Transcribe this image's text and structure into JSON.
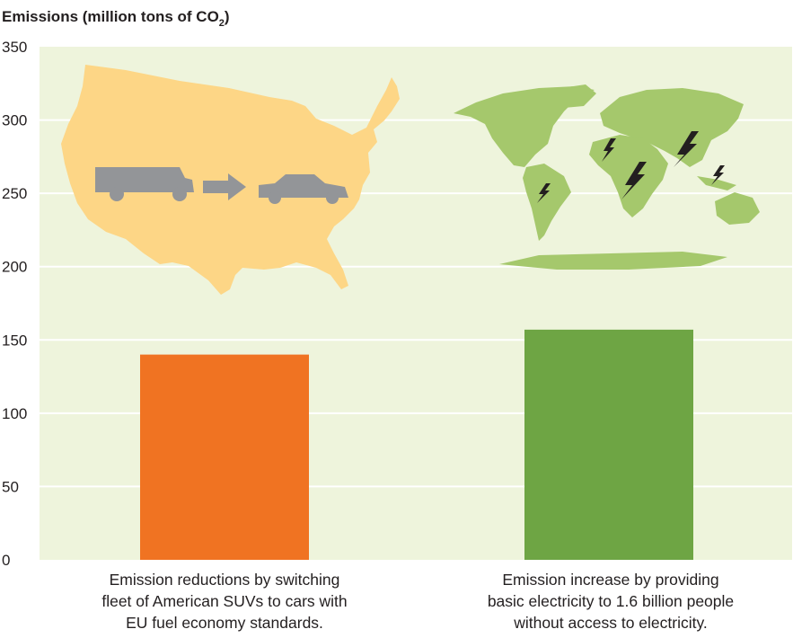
{
  "chart_data": {
    "type": "bar",
    "ylabel": "Emissions (million tons of CO",
    "ylabel_subscript": "2",
    "ylabel_close": ")",
    "ylim": [
      0,
      350
    ],
    "yticks": [
      0,
      50,
      100,
      150,
      200,
      250,
      300,
      350
    ],
    "grid": true,
    "categories": [
      [
        "Emission reductions by switching",
        "fleet of American SUVs to cars with",
        "EU fuel economy standards."
      ],
      [
        "Emission increase by providing",
        "basic electricity to 1.6 billion people",
        "without access to electricity."
      ]
    ],
    "values": [
      140,
      157
    ],
    "bar_colors": [
      "#f07322",
      "#6ea544"
    ],
    "illustrations": [
      {
        "name": "us-map-illustration",
        "color": "#fdd686",
        "car_color": "#939598"
      },
      {
        "name": "world-map-illustration",
        "color": "#a5c86c",
        "bolt_color": "#231f20"
      }
    ]
  },
  "colors": {
    "plot_background": "#eef4dc",
    "gridline": "#ffffff",
    "text": "#231f20"
  }
}
